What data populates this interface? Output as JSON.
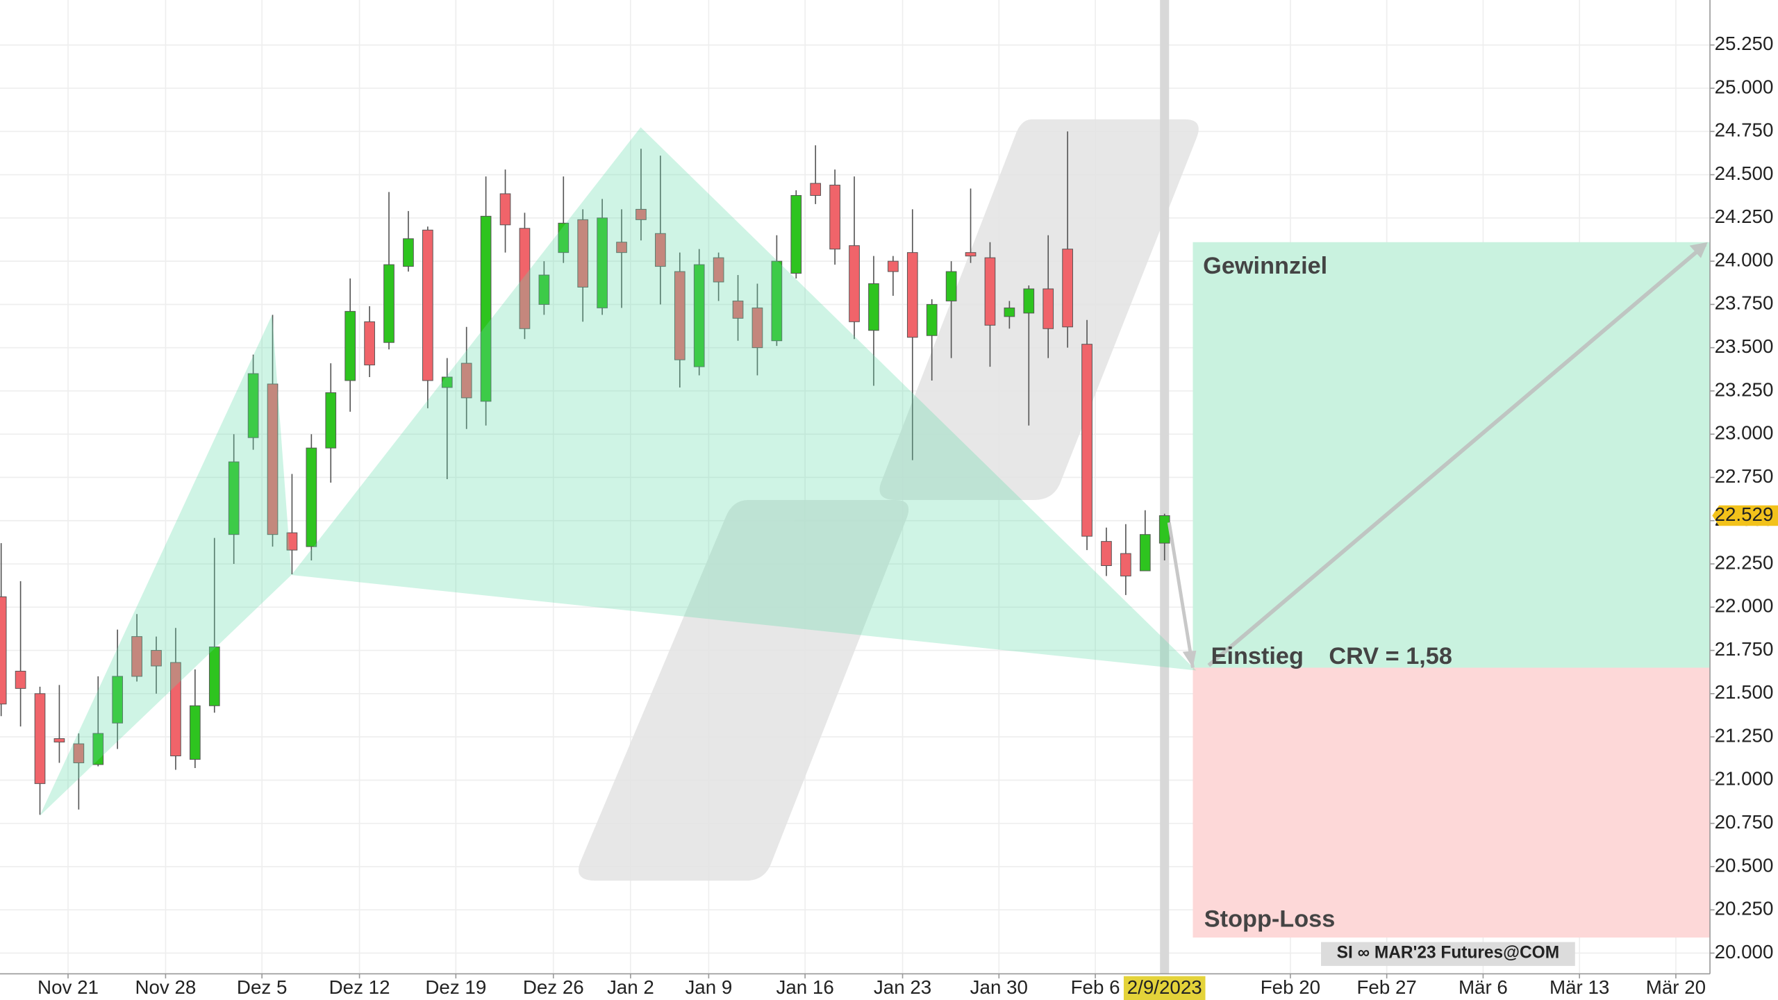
{
  "chart_data": {
    "type": "candlestick",
    "source_label": "SI ∞ MAR'23 Futures@COM",
    "up_color": "#2ec41f",
    "down_color": "#f0646a",
    "grid": true,
    "x": [
      0,
      1,
      2,
      3,
      4,
      5,
      6,
      7,
      8,
      9,
      10,
      11,
      12,
      13,
      14,
      15,
      16,
      17,
      18,
      19,
      20,
      21,
      22,
      23,
      24,
      25,
      26,
      27,
      28,
      29,
      30,
      31,
      32,
      33,
      34,
      35,
      36,
      37,
      38,
      39,
      40,
      41,
      42,
      43,
      44,
      45,
      46,
      47,
      48,
      49,
      50,
      51,
      52,
      53,
      54,
      55,
      56,
      57,
      58,
      59,
      60
    ],
    "open": [
      22.06,
      21.63,
      21.5,
      21.24,
      21.21,
      21.09,
      21.33,
      21.83,
      21.75,
      21.68,
      21.12,
      21.43,
      22.42,
      22.98,
      23.29,
      22.43,
      22.35,
      22.92,
      23.31,
      23.65,
      23.53,
      23.97,
      24.18,
      23.27,
      23.41,
      23.19,
      24.39,
      24.19,
      23.75,
      24.05,
      24.24,
      23.73,
      24.11,
      24.3,
      24.16,
      23.94,
      23.39,
      24.02,
      23.77,
      23.73,
      23.54,
      23.93,
      24.45,
      24.44,
      24.09,
      23.6,
      24.0,
      24.05,
      23.57,
      23.77,
      24.05,
      24.02,
      23.68,
      23.7,
      23.84,
      24.07,
      23.52,
      22.38,
      22.31,
      22.21,
      22.37
    ],
    "high": [
      22.37,
      22.15,
      21.54,
      21.55,
      21.27,
      21.6,
      21.87,
      21.96,
      21.83,
      21.88,
      21.64,
      22.4,
      23.0,
      23.46,
      23.69,
      22.77,
      23.0,
      23.41,
      23.9,
      23.74,
      24.4,
      24.29,
      24.2,
      23.44,
      23.62,
      24.49,
      24.53,
      24.28,
      24.0,
      24.49,
      24.3,
      24.36,
      24.3,
      24.65,
      24.61,
      24.05,
      24.07,
      24.05,
      23.92,
      23.87,
      24.15,
      24.41,
      24.67,
      24.53,
      24.49,
      24.03,
      24.03,
      24.3,
      23.78,
      24.0,
      24.42,
      24.11,
      23.77,
      23.86,
      24.15,
      24.75,
      23.66,
      22.46,
      22.48,
      22.56,
      22.54
    ],
    "low": [
      21.37,
      21.31,
      20.8,
      21.1,
      20.83,
      21.08,
      21.18,
      21.57,
      21.5,
      21.06,
      21.07,
      21.39,
      22.25,
      22.91,
      22.35,
      22.19,
      22.27,
      22.72,
      23.13,
      23.33,
      23.49,
      23.94,
      23.15,
      22.74,
      23.03,
      23.05,
      24.05,
      23.55,
      23.69,
      23.99,
      23.65,
      23.69,
      23.73,
      24.12,
      23.75,
      23.27,
      23.34,
      23.77,
      23.54,
      23.34,
      23.51,
      23.9,
      24.33,
      23.98,
      23.55,
      23.28,
      23.8,
      22.85,
      23.31,
      23.44,
      23.99,
      23.39,
      23.61,
      23.05,
      23.44,
      23.5,
      22.33,
      22.18,
      22.07,
      22.21,
      22.27
    ],
    "close": [
      21.44,
      21.53,
      20.98,
      21.22,
      21.1,
      21.27,
      21.6,
      21.6,
      21.66,
      21.14,
      21.43,
      21.77,
      22.84,
      23.35,
      22.42,
      22.33,
      22.92,
      23.24,
      23.71,
      23.4,
      23.98,
      24.13,
      23.31,
      23.33,
      23.21,
      24.26,
      24.21,
      23.61,
      23.92,
      24.22,
      23.85,
      24.25,
      24.05,
      24.24,
      23.97,
      23.43,
      23.98,
      23.88,
      23.67,
      23.5,
      24.0,
      24.38,
      24.38,
      24.07,
      23.65,
      23.87,
      23.94,
      23.56,
      23.75,
      23.94,
      24.03,
      23.63,
      23.73,
      23.84,
      23.61,
      23.62,
      22.41,
      22.24,
      22.18,
      22.42,
      22.529
    ],
    "xlim": [
      -0.06,
      88.13
    ],
    "xticks": [
      {
        "value": 3.45,
        "label": "Nov 21"
      },
      {
        "value": 8.48,
        "label": "Nov 28"
      },
      {
        "value": 13.45,
        "label": "Dez 5"
      },
      {
        "value": 18.48,
        "label": "Dez 12"
      },
      {
        "value": 23.45,
        "label": "Dez 19"
      },
      {
        "value": 28.48,
        "label": "Dez 26"
      },
      {
        "value": 32.46,
        "label": "Jan 2"
      },
      {
        "value": 36.49,
        "label": "Jan 9"
      },
      {
        "value": 41.46,
        "label": "Jan 16"
      },
      {
        "value": 46.49,
        "label": "Jan 23"
      },
      {
        "value": 51.46,
        "label": "Jan 30"
      },
      {
        "value": 56.43,
        "label": "Feb 6"
      },
      {
        "value": 66.49,
        "label": "Feb 20"
      },
      {
        "value": 71.46,
        "label": "Feb 27"
      },
      {
        "value": 76.43,
        "label": "Mär 6"
      },
      {
        "value": 81.4,
        "label": "Mär 13"
      },
      {
        "value": 86.37,
        "label": "Mär 20"
      }
    ],
    "ylim": [
      19.88,
      25.51
    ],
    "yticks": [
      {
        "value": 20,
        "label": "20.000"
      },
      {
        "value": 20.25,
        "label": "20.250"
      },
      {
        "value": 20.5,
        "label": "20.500"
      },
      {
        "value": 20.75,
        "label": "20.750"
      },
      {
        "value": 21,
        "label": "21.000"
      },
      {
        "value": 21.25,
        "label": "21.250"
      },
      {
        "value": 21.5,
        "label": "21.500"
      },
      {
        "value": 21.75,
        "label": "21.750"
      },
      {
        "value": 22,
        "label": "22.000"
      },
      {
        "value": 22.25,
        "label": "22.250"
      },
      {
        "value": 22.5,
        "label": "22.500"
      },
      {
        "value": 22.75,
        "label": "22.750"
      },
      {
        "value": 23,
        "label": "23.000"
      },
      {
        "value": 23.25,
        "label": "23.250"
      },
      {
        "value": 23.5,
        "label": "23.500"
      },
      {
        "value": 23.75,
        "label": "23.750"
      },
      {
        "value": 24,
        "label": "24.000"
      },
      {
        "value": 24.25,
        "label": "24.250"
      },
      {
        "value": 24.5,
        "label": "24.500"
      },
      {
        "value": 24.75,
        "label": "24.750"
      },
      {
        "value": 25,
        "label": "25.000"
      },
      {
        "value": 25.25,
        "label": "25.250"
      }
    ],
    "last_price": 22.529,
    "crosshair": {
      "x": 60,
      "label": "2/9/2023"
    },
    "trade": {
      "start_x": 61.46,
      "entry": 21.65,
      "target": 24.11,
      "stop": 20.09,
      "target_label": "Gewinnziel",
      "entry_label": "Einstieg",
      "crv_label": "CRV = 1,58",
      "stop_label": "Stopp-Loss"
    }
  }
}
